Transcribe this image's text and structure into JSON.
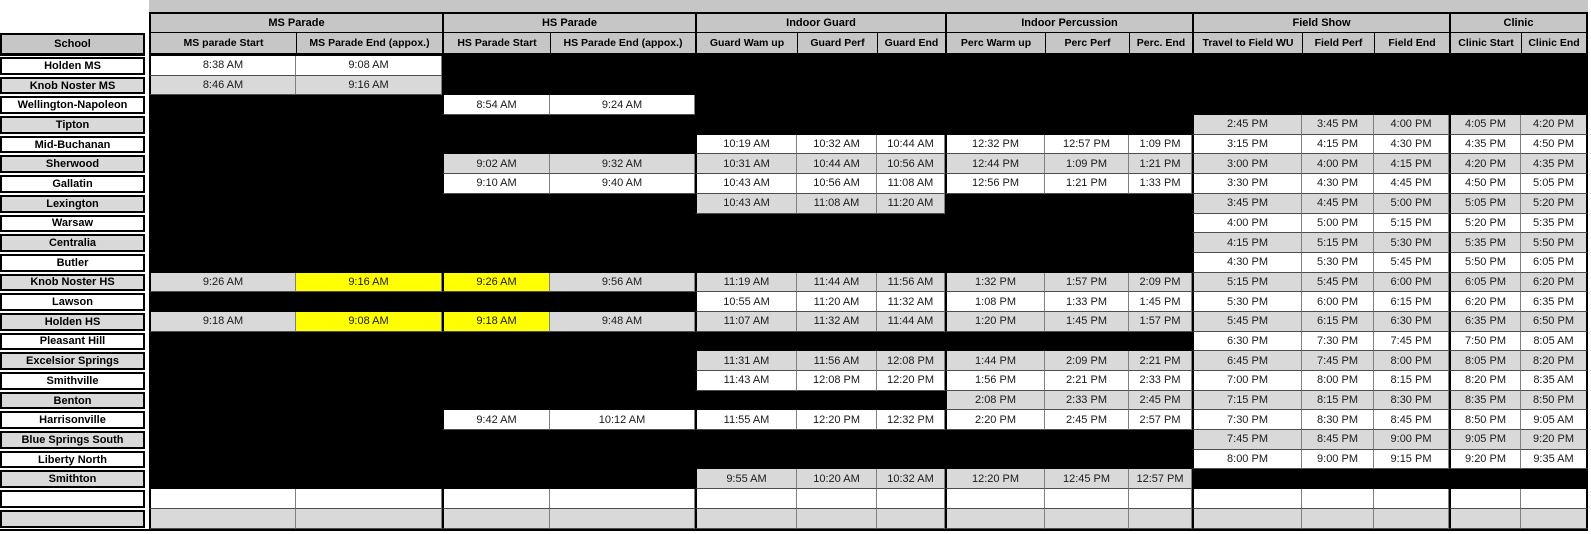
{
  "colors": {
    "row_grey": "#d9d9d9",
    "header_grey": "#c6c6c6",
    "highlight_yellow": "#ffff00",
    "missing_black": "#000000"
  },
  "table": {
    "groups": [
      {
        "label": "MS Parade",
        "span": 2
      },
      {
        "label": "HS Parade",
        "span": 2
      },
      {
        "label": "Indoor Guard",
        "span": 3
      },
      {
        "label": "Indoor Percussion",
        "span": 3
      },
      {
        "label": "Field Show",
        "span": 3
      },
      {
        "label": "Clinic",
        "span": 2
      }
    ],
    "school_header": "School",
    "columns": [
      "MS parade Start",
      "MS Parade End (appox.)",
      "HS Parade Start",
      "HS Parade End (appox.)",
      "Guard Wam up",
      "Guard Perf",
      "Guard End",
      "Perc Warm up",
      "Perc Perf",
      "Perc. End",
      "Travel to Field WU",
      "Field Perf",
      "Field End",
      "Clinic Start",
      "Clinic End"
    ],
    "rows": [
      {
        "school": "Holden MS",
        "shade": "w",
        "hl": [],
        "blank": false,
        "cells": [
          "8:38 AM",
          "9:08 AM",
          "",
          "",
          "",
          "",
          "",
          "",
          "",
          "",
          "",
          "",
          "",
          "",
          ""
        ]
      },
      {
        "school": "Knob Noster MS",
        "shade": "g",
        "hl": [],
        "blank": false,
        "cells": [
          "8:46 AM",
          "9:16 AM",
          "",
          "",
          "",
          "",
          "",
          "",
          "",
          "",
          "",
          "",
          "",
          "",
          ""
        ]
      },
      {
        "school": "Wellington-Napoleon",
        "shade": "w",
        "hl": [],
        "blank": false,
        "cells": [
          "",
          "",
          "8:54 AM",
          "9:24 AM",
          "",
          "",
          "",
          "",
          "",
          "",
          "",
          "",
          "",
          "",
          ""
        ]
      },
      {
        "school": "Tipton",
        "shade": "g",
        "hl": [],
        "blank": false,
        "cells": [
          "",
          "",
          "",
          "",
          "",
          "",
          "",
          "",
          "",
          "",
          "2:45 PM",
          "3:45 PM",
          "4:00 PM",
          "4:05 PM",
          "4:20 PM"
        ]
      },
      {
        "school": "Mid-Buchanan",
        "shade": "w",
        "hl": [],
        "blank": false,
        "cells": [
          "",
          "",
          "",
          "",
          "10:19 AM",
          "10:32 AM",
          "10:44 AM",
          "12:32 PM",
          "12:57 PM",
          "1:09 PM",
          "3:15 PM",
          "4:15 PM",
          "4:30 PM",
          "4:35 PM",
          "4:50 PM"
        ]
      },
      {
        "school": "Sherwood",
        "shade": "g",
        "hl": [],
        "blank": false,
        "cells": [
          "",
          "",
          "9:02 AM",
          "9:32 AM",
          "10:31 AM",
          "10:44 AM",
          "10:56 AM",
          "12:44 PM",
          "1:09 PM",
          "1:21 PM",
          "3:00 PM",
          "4:00 PM",
          "4:15 PM",
          "4:20 PM",
          "4:35 PM"
        ]
      },
      {
        "school": "Gallatin",
        "shade": "w",
        "hl": [],
        "blank": false,
        "cells": [
          "",
          "",
          "9:10 AM",
          "9:40 AM",
          "10:43 AM",
          "10:56 AM",
          "11:08 AM",
          "12:56 PM",
          "1:21 PM",
          "1:33 PM",
          "3:30 PM",
          "4:30 PM",
          "4:45 PM",
          "4:50 PM",
          "5:05 PM"
        ]
      },
      {
        "school": "Lexington",
        "shade": "g",
        "hl": [],
        "blank": false,
        "cells": [
          "",
          "",
          "",
          "",
          "10:43 AM",
          "11:08 AM",
          "11:20 AM",
          "",
          "",
          "",
          "3:45 PM",
          "4:45 PM",
          "5:00 PM",
          "5:05 PM",
          "5:20 PM"
        ]
      },
      {
        "school": "Warsaw",
        "shade": "w",
        "hl": [],
        "blank": false,
        "cells": [
          "",
          "",
          "",
          "",
          "",
          "",
          "",
          "",
          "",
          "",
          "4:00 PM",
          "5:00 PM",
          "5:15 PM",
          "5:20 PM",
          "5:35 PM"
        ]
      },
      {
        "school": "Centralia",
        "shade": "g",
        "hl": [],
        "blank": false,
        "cells": [
          "",
          "",
          "",
          "",
          "",
          "",
          "",
          "",
          "",
          "",
          "4:15 PM",
          "5:15 PM",
          "5:30 PM",
          "5:35 PM",
          "5:50 PM"
        ]
      },
      {
        "school": "Butler",
        "shade": "w",
        "hl": [],
        "blank": false,
        "cells": [
          "",
          "",
          "",
          "",
          "",
          "",
          "",
          "",
          "",
          "",
          "4:30 PM",
          "5:30 PM",
          "5:45 PM",
          "5:50 PM",
          "6:05 PM"
        ]
      },
      {
        "school": "Knob Noster HS",
        "shade": "g",
        "hl": [
          1,
          2
        ],
        "blank": false,
        "cells": [
          "9:26 AM",
          "9:16 AM",
          "9:26 AM",
          "9:56 AM",
          "11:19 AM",
          "11:44 AM",
          "11:56 AM",
          "1:32 PM",
          "1:57 PM",
          "2:09 PM",
          "5:15 PM",
          "5:45 PM",
          "6:00 PM",
          "6:05 PM",
          "6:20 PM"
        ]
      },
      {
        "school": "Lawson",
        "shade": "w",
        "hl": [],
        "blank": false,
        "cells": [
          "",
          "",
          "",
          "",
          "10:55 AM",
          "11:20 AM",
          "11:32 AM",
          "1:08 PM",
          "1:33 PM",
          "1:45 PM",
          "5:30 PM",
          "6:00 PM",
          "6:15 PM",
          "6:20 PM",
          "6:35 PM"
        ]
      },
      {
        "school": "Holden HS",
        "shade": "g",
        "hl": [
          1,
          2
        ],
        "blank": false,
        "cells": [
          "9:18 AM",
          "9:08 AM",
          "9:18 AM",
          "9:48 AM",
          "11:07 AM",
          "11:32 AM",
          "11:44 AM",
          "1:20 PM",
          "1:45 PM",
          "1:57 PM",
          "5:45 PM",
          "6:15 PM",
          "6:30 PM",
          "6:35 PM",
          "6:50 PM"
        ]
      },
      {
        "school": "Pleasant Hill",
        "shade": "w",
        "hl": [],
        "blank": false,
        "cells": [
          "",
          "",
          "",
          "",
          "",
          "",
          "",
          "",
          "",
          "",
          "6:30 PM",
          "7:30 PM",
          "7:45 PM",
          "7:50 PM",
          "8:05 AM"
        ]
      },
      {
        "school": "Excelsior Springs",
        "shade": "g",
        "hl": [],
        "blank": false,
        "cells": [
          "",
          "",
          "",
          "",
          "11:31 AM",
          "11:56 AM",
          "12:08 PM",
          "1:44 PM",
          "2:09 PM",
          "2:21 PM",
          "6:45 PM",
          "7:45 PM",
          "8:00 PM",
          "8:05 PM",
          "8:20 PM"
        ]
      },
      {
        "school": "Smithville",
        "shade": "w",
        "hl": [],
        "blank": false,
        "cells": [
          "",
          "",
          "",
          "",
          "11:43 AM",
          "12:08 PM",
          "12:20 PM",
          "1:56 PM",
          "2:21 PM",
          "2:33 PM",
          "7:00 PM",
          "8:00 PM",
          "8:15 PM",
          "8:20 PM",
          "8:35 AM"
        ]
      },
      {
        "school": "Benton",
        "shade": "g",
        "hl": [],
        "blank": false,
        "cells": [
          "",
          "",
          "",
          "",
          "",
          "",
          "",
          "2:08 PM",
          "2:33 PM",
          "2:45 PM",
          "7:15 PM",
          "8:15 PM",
          "8:30 PM",
          "8:35 PM",
          "8:50 PM"
        ]
      },
      {
        "school": "Harrisonville",
        "shade": "w",
        "hl": [],
        "blank": false,
        "cells": [
          "",
          "",
          "9:42 AM",
          "10:12 AM",
          "11:55 AM",
          "12:20 PM",
          "12:32 PM",
          "2:20 PM",
          "2:45 PM",
          "2:57 PM",
          "7:30 PM",
          "8:30 PM",
          "8:45 PM",
          "8:50 PM",
          "9:05 AM"
        ]
      },
      {
        "school": "Blue Springs South",
        "shade": "g",
        "hl": [],
        "blank": false,
        "cells": [
          "",
          "",
          "",
          "",
          "",
          "",
          "",
          "",
          "",
          "",
          "7:45 PM",
          "8:45 PM",
          "9:00 PM",
          "9:05 PM",
          "9:20 PM"
        ]
      },
      {
        "school": "Liberty North",
        "shade": "w",
        "hl": [],
        "blank": false,
        "cells": [
          "",
          "",
          "",
          "",
          "",
          "",
          "",
          "",
          "",
          "",
          "8:00 PM",
          "9:00 PM",
          "9:15 PM",
          "9:20 PM",
          "9:35 AM"
        ]
      },
      {
        "school": "Smithton",
        "shade": "g",
        "hl": [],
        "blank": false,
        "cells": [
          "",
          "",
          "",
          "",
          "9:55 AM",
          "10:20 AM",
          "10:32 AM",
          "12:20 PM",
          "12:45 PM",
          "12:57 PM",
          "",
          "",
          "",
          "",
          ""
        ]
      },
      {
        "school": "",
        "shade": "w",
        "hl": [],
        "blank": true,
        "cells": [
          "",
          "",
          "",
          "",
          "",
          "",
          "",
          "",
          "",
          "",
          "",
          "",
          "",
          "",
          ""
        ]
      },
      {
        "school": "",
        "shade": "g",
        "hl": [],
        "blank": true,
        "cells": [
          "",
          "",
          "",
          "",
          "",
          "",
          "",
          "",
          "",
          "",
          "",
          "",
          "",
          "",
          ""
        ]
      }
    ]
  }
}
